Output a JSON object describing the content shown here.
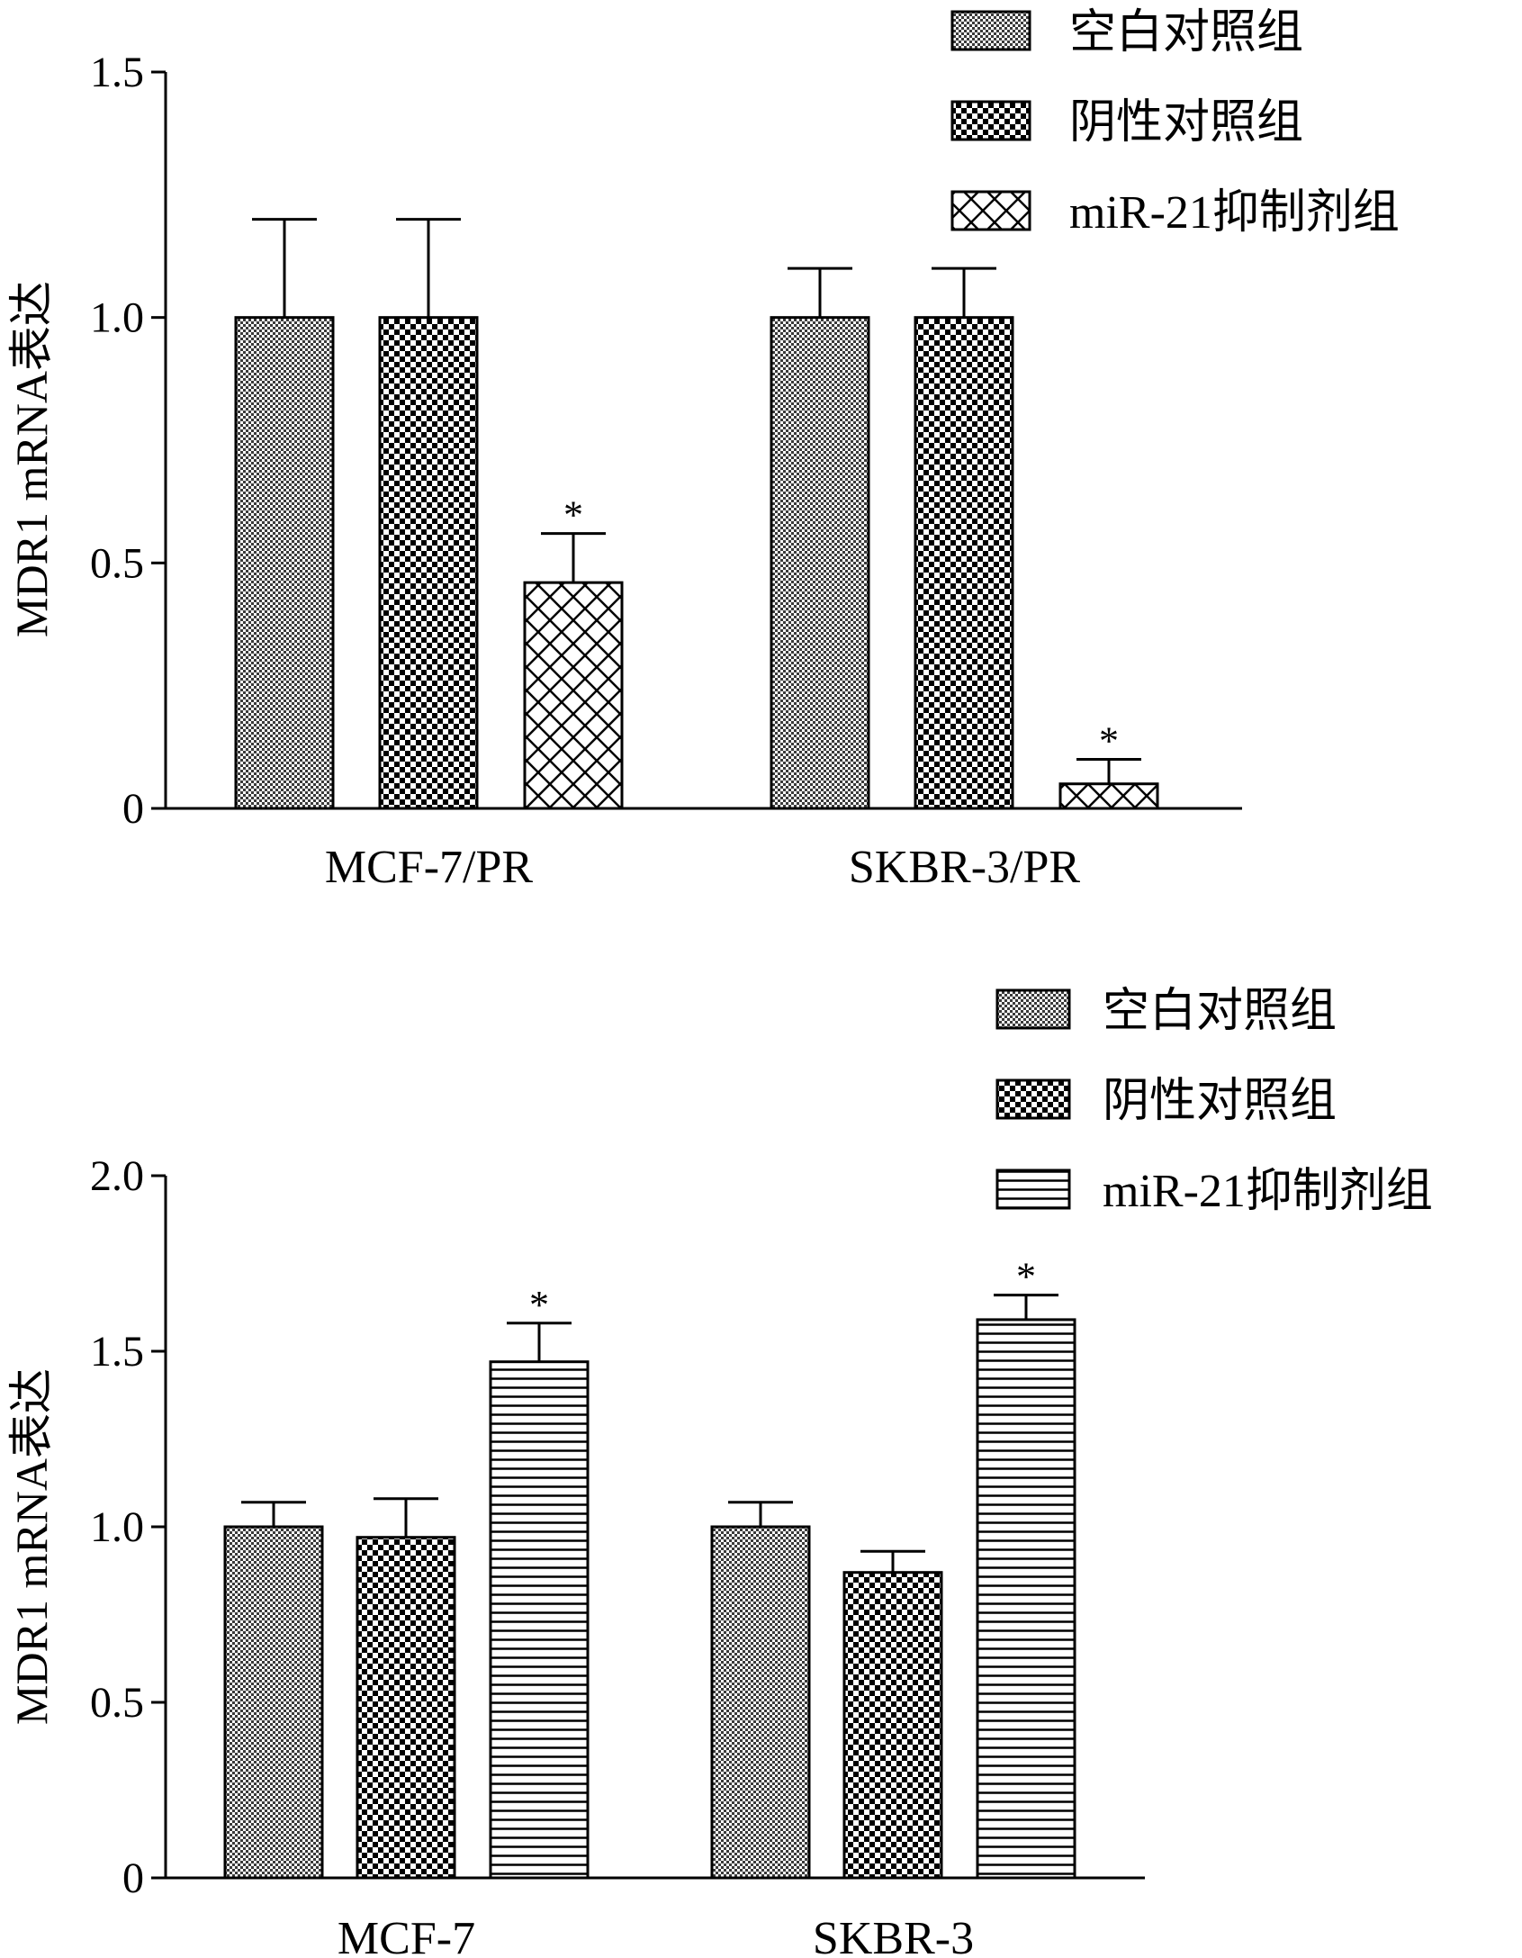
{
  "chart_data": [
    {
      "type": "bar",
      "title": "",
      "xlabel": "",
      "ylabel": "MDR1 mRNA表达",
      "ylim": [
        0,
        1.5
      ],
      "yticks": [
        {
          "value": 0,
          "label": "0"
        },
        {
          "value": 0.5,
          "label": "0.5"
        },
        {
          "value": 1.0,
          "label": "1.0"
        },
        {
          "value": 1.5,
          "label": "1.5"
        }
      ],
      "categories": [
        "MCF-7/PR",
        "SKBR-3/PR"
      ],
      "series": [
        {
          "name": "空白对照组",
          "pattern": "fine-check",
          "values": [
            1.0,
            1.0
          ],
          "errors": [
            0.2,
            0.1
          ],
          "sig": [
            "",
            ""
          ]
        },
        {
          "name": "阴性对照组",
          "pattern": "coarse-check",
          "values": [
            1.0,
            1.0
          ],
          "errors": [
            0.2,
            0.1
          ],
          "sig": [
            "",
            ""
          ]
        },
        {
          "name": "miR-21抑制剂组",
          "pattern": "crosshatch",
          "values": [
            0.46,
            0.05
          ],
          "errors": [
            0.1,
            0.05
          ],
          "sig": [
            "*",
            "*"
          ]
        }
      ],
      "legend": "top-right",
      "grid": false
    },
    {
      "type": "bar",
      "title": "",
      "xlabel": "",
      "ylabel": "MDR1 mRNA表达",
      "ylim": [
        0,
        2.0
      ],
      "yticks": [
        {
          "value": 0,
          "label": "0"
        },
        {
          "value": 0.5,
          "label": "0.5"
        },
        {
          "value": 1.0,
          "label": "1.0"
        },
        {
          "value": 1.5,
          "label": "1.5"
        },
        {
          "value": 2.0,
          "label": "2.0"
        }
      ],
      "categories": [
        "MCF-7",
        "SKBR-3"
      ],
      "series": [
        {
          "name": "空白对照组",
          "pattern": "fine-check",
          "values": [
            1.0,
            1.0
          ],
          "errors": [
            0.07,
            0.07
          ],
          "sig": [
            "",
            ""
          ]
        },
        {
          "name": "阴性对照组",
          "pattern": "coarse-check",
          "values": [
            0.97,
            0.87
          ],
          "errors": [
            0.11,
            0.06
          ],
          "sig": [
            "",
            ""
          ]
        },
        {
          "name": "miR-21抑制剂组",
          "pattern": "hlines",
          "values": [
            1.47,
            1.59
          ],
          "errors": [
            0.11,
            0.07
          ],
          "sig": [
            "*",
            "*"
          ]
        }
      ],
      "legend": "top-right",
      "grid": false
    }
  ]
}
